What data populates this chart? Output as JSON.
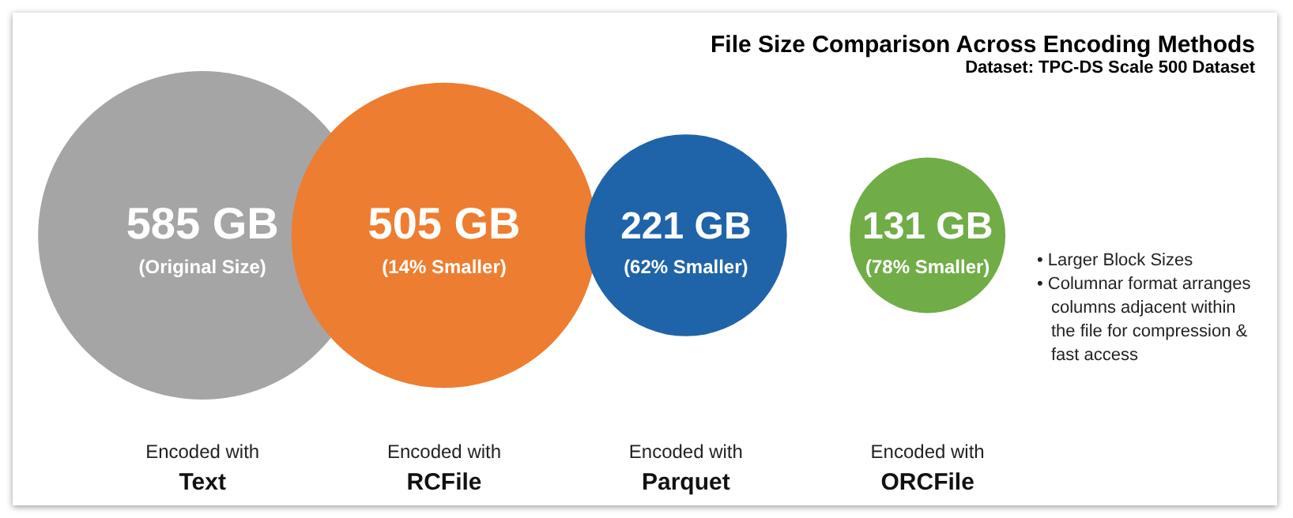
{
  "chart_data": {
    "type": "other",
    "title": "File Size Comparison Across Encoding Methods",
    "subtitle": "Dataset: TPC-DS Scale 500 Dataset",
    "categories": [
      "Encoded with Text",
      "Encoded with RCFile",
      "Encoded with Parquet",
      "Encoded with ORCFile"
    ],
    "values": [
      585,
      505,
      221,
      131
    ],
    "colors": [
      "#a5a5a5",
      "#ed7d31",
      "#1f64a8",
      "#70ad47"
    ],
    "value_labels": [
      "585 GB",
      "505 GB",
      "221 GB",
      "131 GB"
    ],
    "annotations": [
      {
        "text": "(Original Size)",
        "x": "Encoded with Text"
      },
      {
        "text": "(14% Smaller)",
        "x": "Encoded with RCFile"
      },
      {
        "text": "(62% Smaller)",
        "x": "Encoded with Parquet"
      },
      {
        "text": "(78% Smaller)",
        "x": "Encoded with ORCFile"
      },
      "• Larger Block Sizes",
      "• Columnar format arranges columns adjacent within the file for compression & fast access"
    ]
  }
}
